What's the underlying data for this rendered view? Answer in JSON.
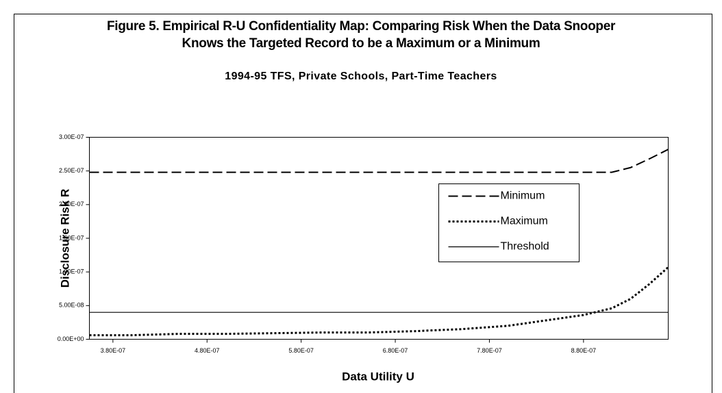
{
  "chart_data": {
    "type": "line",
    "title": "Figure 5. Empirical R-U Confidentiality Map: Comparing Risk When the Data Snooper Knows the Targeted Record to be a Maximum or a Minimum",
    "subtitle": "1994-95 TFS, Private Schools, Part-Time Teachers",
    "x_label": "Data Utility U",
    "y_label": "Disclosure Risk R",
    "x": [
      3.55e-07,
      4e-07,
      4.5e-07,
      5e-07,
      5.5e-07,
      6e-07,
      6.5e-07,
      7e-07,
      7.5e-07,
      8e-07,
      8.5e-07,
      8.8e-07,
      9.1e-07,
      9.3e-07,
      9.5e-07,
      9.7e-07
    ],
    "series": [
      {
        "name": "Minimum",
        "color": "#000000",
        "style": "dashed",
        "values": [
          2.48e-07,
          2.48e-07,
          2.48e-07,
          2.48e-07,
          2.48e-07,
          2.48e-07,
          2.48e-07,
          2.48e-07,
          2.48e-07,
          2.48e-07,
          2.48e-07,
          2.48e-07,
          2.48e-07,
          2.55e-07,
          2.68e-07,
          2.82e-07
        ]
      },
      {
        "name": "Maximum",
        "color": "#000000",
        "style": "dotted",
        "values": [
          6e-09,
          6e-09,
          8e-09,
          8e-09,
          9e-09,
          1e-08,
          1e-08,
          1.2e-08,
          1.5e-08,
          2e-08,
          3e-08,
          3.6e-08,
          4.6e-08,
          6e-08,
          8.2e-08,
          1.07e-07
        ]
      },
      {
        "name": "Threshold",
        "color": "#000000",
        "style": "solid",
        "values": [
          4e-08,
          4e-08,
          4e-08,
          4e-08,
          4e-08,
          4e-08,
          4e-08,
          4e-08,
          4e-08,
          4e-08,
          4e-08,
          4e-08,
          4e-08,
          4e-08,
          4e-08,
          4e-08
        ]
      }
    ],
    "xlim": [
      3.55e-07,
      9.7e-07
    ],
    "xticks": [
      {
        "value": 3.8e-07,
        "label": "3.80E-07"
      },
      {
        "value": 4.8e-07,
        "label": "4.80E-07"
      },
      {
        "value": 5.8e-07,
        "label": "5.80E-07"
      },
      {
        "value": 6.8e-07,
        "label": "6.80E-07"
      },
      {
        "value": 7.8e-07,
        "label": "7.80E-07"
      },
      {
        "value": 8.8e-07,
        "label": "8.80E-07"
      }
    ],
    "ylim": [
      0,
      3e-07
    ],
    "yticks": [
      {
        "value": 0,
        "label": "0.00E+00"
      },
      {
        "value": 5e-08,
        "label": "5.00E-08"
      },
      {
        "value": 1e-07,
        "label": "1.00E-07"
      },
      {
        "value": 1.5e-07,
        "label": "1.50E-07"
      },
      {
        "value": 2e-07,
        "label": "2.00E-07"
      },
      {
        "value": 2.5e-07,
        "label": "2.50E-07"
      },
      {
        "value": 3e-07,
        "label": "3.00E-07"
      }
    ],
    "grid": false,
    "legend": "right"
  }
}
